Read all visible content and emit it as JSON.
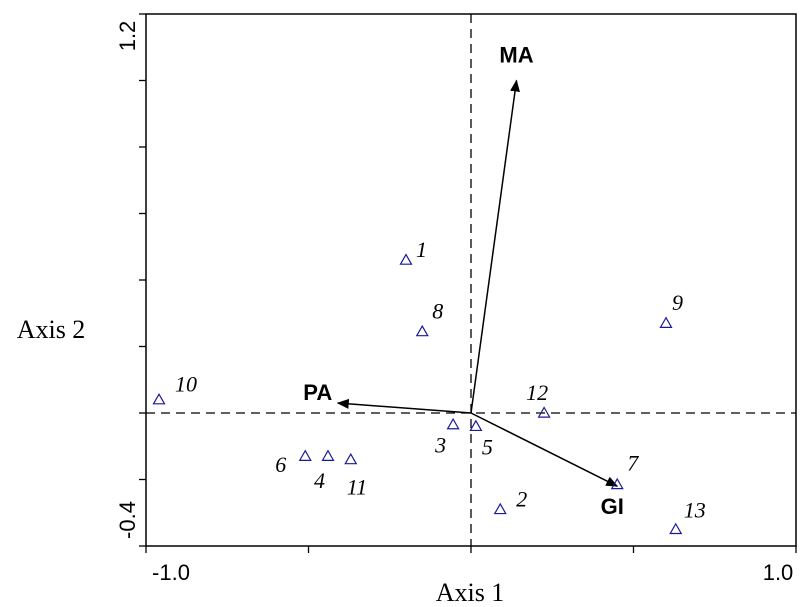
{
  "chart_data": {
    "type": "scatter",
    "title": "",
    "xlabel": "Axis 1",
    "ylabel": "Axis 2",
    "xlim": [
      -1.0,
      1.0
    ],
    "ylim": [
      -0.4,
      1.2
    ],
    "x_tick_labels": [
      "-1.0",
      "1.0"
    ],
    "y_tick_labels": [
      "-0.4",
      "1.2"
    ],
    "reference_lines": {
      "x": 0,
      "y": 0,
      "style": "dashed"
    },
    "grid": false,
    "point_color": "#1a1a99",
    "marker": "open-triangle",
    "series": [
      {
        "points": [
          {
            "label": "1",
            "x": -0.2,
            "y": 0.46
          },
          {
            "label": "2",
            "x": 0.09,
            "y": -0.29
          },
          {
            "label": "3",
            "x": -0.055,
            "y": -0.035
          },
          {
            "label": "4",
            "x": -0.44,
            "y": -0.13
          },
          {
            "label": "5",
            "x": 0.015,
            "y": -0.04
          },
          {
            "label": "6",
            "x": -0.51,
            "y": -0.13
          },
          {
            "label": "7",
            "x": 0.45,
            "y": -0.215
          },
          {
            "label": "8",
            "x": -0.15,
            "y": 0.245
          },
          {
            "label": "9",
            "x": 0.6,
            "y": 0.27
          },
          {
            "label": "10",
            "x": -0.96,
            "y": 0.04
          },
          {
            "label": "11",
            "x": -0.37,
            "y": -0.14
          },
          {
            "label": "12",
            "x": 0.225,
            "y": 0.0
          },
          {
            "label": "13",
            "x": 0.63,
            "y": -0.35
          }
        ]
      }
    ],
    "vectors": [
      {
        "label": "MA",
        "x": 0.14,
        "y": 1.0
      },
      {
        "label": "PA",
        "x": -0.41,
        "y": 0.03
      },
      {
        "label": "GI",
        "x": 0.45,
        "y": -0.22
      }
    ]
  }
}
